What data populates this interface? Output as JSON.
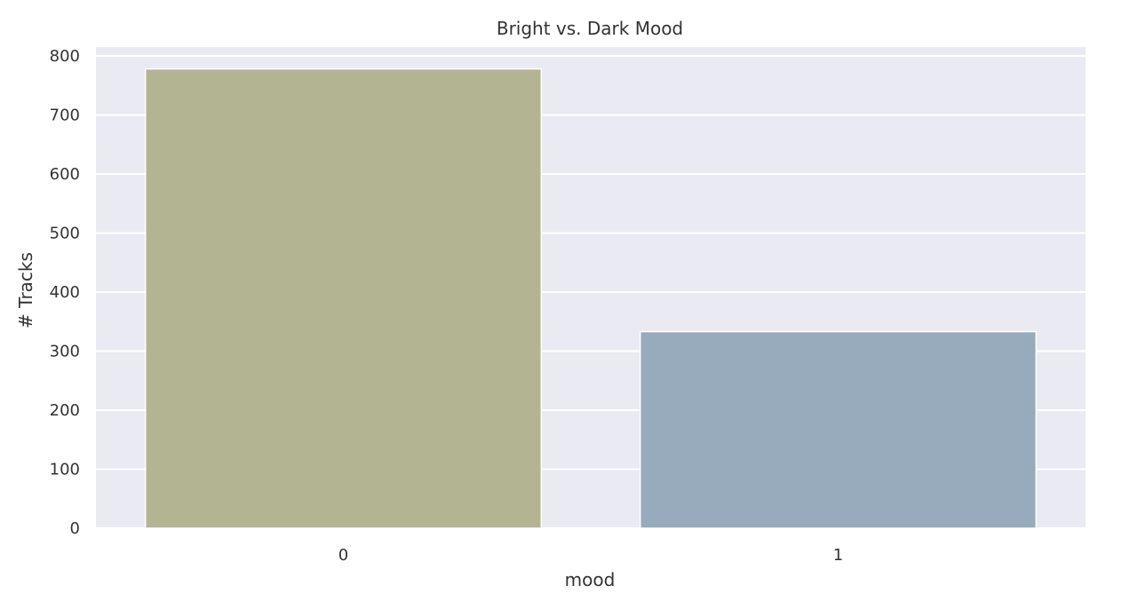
{
  "chart_data": {
    "type": "bar",
    "title": "Bright vs. Dark Mood",
    "xlabel": "mood",
    "ylabel": "# Tracks",
    "categories": [
      "0",
      "1"
    ],
    "values": [
      778,
      333
    ],
    "ylim": [
      0,
      815
    ],
    "yticks": [
      0,
      100,
      200,
      300,
      400,
      500,
      600,
      700,
      800
    ],
    "grid": true,
    "legend": "none",
    "colors": {
      "background": "#eaeaf2",
      "gridline": "#ffffff",
      "bars": [
        "#b3b492",
        "#97abbd"
      ]
    }
  }
}
